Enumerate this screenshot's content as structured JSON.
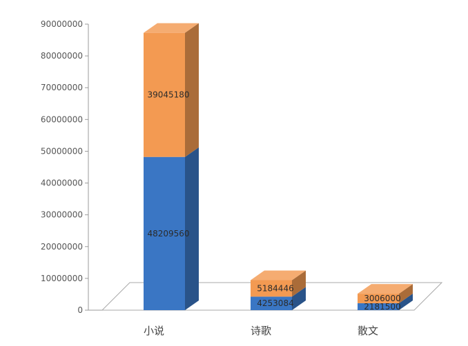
{
  "chart_data": {
    "type": "bar",
    "stacked": true,
    "three_d": true,
    "categories": [
      "小说",
      "诗歌",
      "散文"
    ],
    "series": [
      {
        "values": [
          48209560,
          4253084,
          2181500
        ],
        "color": "#3a76c4"
      },
      {
        "values": [
          39045180,
          5184446,
          3006000
        ],
        "color": "#f39a52"
      }
    ],
    "y_ticks": [
      "0",
      "10000000",
      "20000000",
      "30000000",
      "40000000",
      "50000000",
      "60000000",
      "70000000",
      "80000000",
      "90000000"
    ],
    "ylim": [
      0,
      90000000
    ],
    "title": "",
    "xlabel": "",
    "ylabel": "",
    "legend": "none",
    "grid": false
  }
}
